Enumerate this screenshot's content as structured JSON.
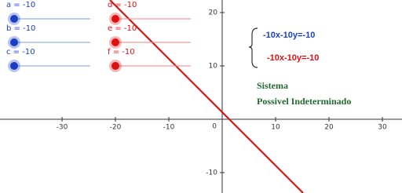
{
  "sliders": [
    {
      "label": "a = -10",
      "color": "#1a3fc4"
    },
    {
      "label": "b = -10",
      "color": "#1a3fc4"
    },
    {
      "label": "c = -10",
      "color": "#1a3fc4"
    },
    {
      "label": "d = -10",
      "color": "#e01010"
    },
    {
      "label": "e = -10",
      "color": "#e01010"
    },
    {
      "label": "f = -10",
      "color": "#e01010"
    }
  ],
  "graph": {
    "xticks": [
      -30,
      -20,
      -10,
      10,
      20,
      30
    ],
    "yticks": [
      -10,
      10,
      20
    ],
    "origin_label": "0"
  },
  "system": {
    "equations": [
      {
        "text": "-10x-10y=-10",
        "color": "#1a3fc4"
      },
      {
        "text": "-10x-10y=-10",
        "color": "#e01010"
      }
    ],
    "title": "Sistema",
    "classification": "Possivel Indeterminado"
  }
}
